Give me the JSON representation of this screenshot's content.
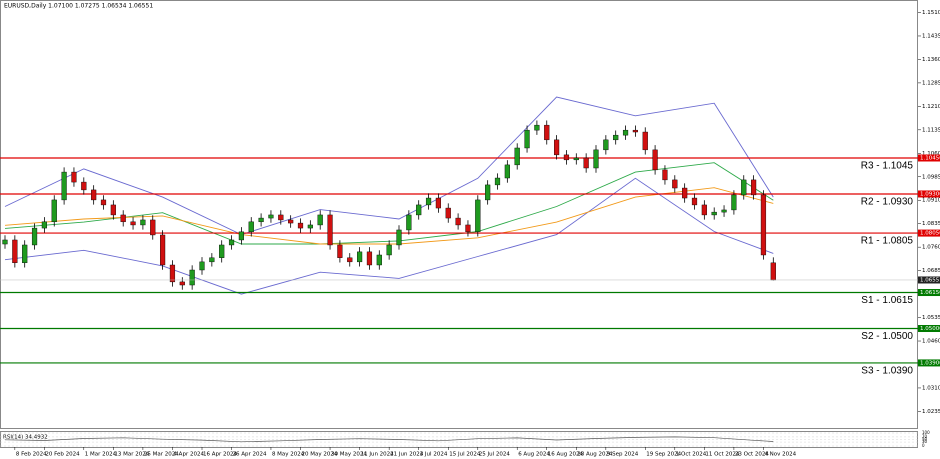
{
  "chart_data": {
    "type": "candlestick",
    "title": "EURUSD,Daily 1.07100 1.07275 1.06534 1.06551",
    "categories": [
      null,
      "8 Feb 2024",
      null,
      null,
      "20 Feb 2024",
      null,
      null,
      null,
      "1 Mar 2024",
      null,
      null,
      "13 Mar 2024",
      null,
      null,
      "25 Mar 2024",
      null,
      null,
      "4 Apr 2024",
      null,
      null,
      "16 Apr 2024",
      null,
      null,
      "26 Apr 2024",
      null,
      null,
      null,
      "8 May 2024",
      null,
      null,
      "20 May 2024",
      null,
      null,
      "30 May 2024",
      null,
      null,
      "11 Jun 2024",
      null,
      null,
      "21 Jun 2024",
      null,
      null,
      "3 Jul 2024",
      null,
      null,
      "15 Jul 2024",
      null,
      null,
      "25 Jul 2024",
      null,
      null,
      null,
      "6 Aug 2024",
      null,
      null,
      "16 Aug 2024",
      null,
      null,
      "28 Aug 2024",
      null,
      null,
      "9 Sep 2024",
      null,
      null,
      null,
      "19 Sep 2024",
      null,
      null,
      "1 Oct 2024",
      null,
      null,
      "11 Oct 2024",
      null,
      null,
      "23 Oct 2024",
      null,
      null,
      "4 Nov 2024",
      null
    ],
    "open": [
      1.077,
      1.0783,
      1.071,
      1.0767,
      1.0821,
      1.0841,
      1.0911,
      1.1,
      1.0968,
      1.0943,
      1.0911,
      1.0895,
      1.0863,
      1.0841,
      1.0831,
      1.0847,
      1.0799,
      1.0703,
      1.0649,
      1.0639,
      1.0687,
      1.0713,
      1.0726,
      1.0767,
      1.0783,
      1.0809,
      1.0841,
      1.0853,
      1.0863,
      1.0847,
      1.0837,
      1.0821,
      1.0831,
      1.0863,
      1.0767,
      1.0726,
      1.0713,
      1.0745,
      1.0703,
      1.0735,
      1.0767,
      1.0815,
      1.0863,
      1.0895,
      1.0917,
      1.0885,
      1.0853,
      1.0831,
      1.0809,
      1.0911,
      1.0959,
      1.0981,
      1.1023,
      1.1077,
      1.1134,
      1.115,
      1.1103,
      1.1055,
      1.1039,
      1.1045,
      1.1013,
      1.1071,
      1.1103,
      1.1118,
      1.1134,
      1.1128,
      1.1071,
      1.1007,
      1.0975,
      1.0949,
      1.0917,
      1.0895,
      1.0863,
      1.0872,
      1.0879,
      1.0927,
      1.0975,
      1.0927,
      1.071
    ],
    "high": [
      1.0798,
      1.0798,
      1.0782,
      1.0836,
      1.0856,
      1.0926,
      1.1015,
      1.1015,
      1.0983,
      1.0958,
      1.0926,
      1.091,
      1.0878,
      1.0856,
      1.0862,
      1.0862,
      1.0814,
      1.0718,
      1.0664,
      1.0702,
      1.0728,
      1.0741,
      1.0782,
      1.0798,
      1.0824,
      1.0856,
      1.0868,
      1.0878,
      1.0878,
      1.0862,
      1.0852,
      1.0846,
      1.0878,
      1.0878,
      1.0782,
      1.0741,
      1.076,
      1.076,
      1.075,
      1.0782,
      1.083,
      1.0878,
      1.091,
      1.0932,
      1.0932,
      1.09,
      1.0868,
      1.0846,
      1.0926,
      1.0974,
      1.0996,
      1.1038,
      1.1092,
      1.1149,
      1.1165,
      1.1165,
      1.1118,
      1.107,
      1.106,
      1.106,
      1.1086,
      1.1118,
      1.1133,
      1.1149,
      1.1149,
      1.1143,
      1.1086,
      1.1022,
      1.099,
      1.0964,
      1.0932,
      1.091,
      1.0887,
      1.0894,
      1.0942,
      1.099,
      1.099,
      1.0942,
      1.07275
    ],
    "low": [
      1.0755,
      1.0695,
      1.0695,
      1.0752,
      1.0806,
      1.0826,
      1.0896,
      1.0953,
      1.0928,
      1.0896,
      1.088,
      1.0848,
      1.0826,
      1.0816,
      1.0816,
      1.0784,
      1.0688,
      1.0634,
      1.0624,
      1.0624,
      1.0672,
      1.0698,
      1.0711,
      1.0752,
      1.0768,
      1.0794,
      1.0826,
      1.0838,
      1.0832,
      1.0822,
      1.0806,
      1.0806,
      1.0816,
      1.0752,
      1.0711,
      1.0698,
      1.0698,
      1.0688,
      1.0688,
      1.072,
      1.0752,
      1.08,
      1.0848,
      1.088,
      1.087,
      1.0838,
      1.0816,
      1.0794,
      1.0794,
      1.0896,
      1.0944,
      1.0966,
      1.1008,
      1.1062,
      1.1119,
      1.1088,
      1.104,
      1.1024,
      1.1024,
      1.0998,
      1.0998,
      1.1056,
      1.1088,
      1.1103,
      1.1113,
      1.1056,
      1.0992,
      1.096,
      1.0934,
      1.0902,
      1.088,
      1.0848,
      1.0848,
      1.0857,
      1.0864,
      1.0912,
      1.0912,
      1.072,
      1.06534
    ],
    "close": [
      1.0783,
      1.071,
      1.0767,
      1.0821,
      1.0841,
      1.0911,
      1.1,
      1.0968,
      1.0943,
      1.0911,
      1.0895,
      1.0863,
      1.0841,
      1.0831,
      1.0847,
      1.0799,
      1.0703,
      1.0649,
      1.0639,
      1.0687,
      1.0713,
      1.0726,
      1.0767,
      1.0783,
      1.0809,
      1.0841,
      1.0853,
      1.0863,
      1.0847,
      1.0837,
      1.0821,
      1.0831,
      1.0863,
      1.0767,
      1.0726,
      1.0713,
      1.0745,
      1.0703,
      1.0735,
      1.0767,
      1.0815,
      1.0863,
      1.0895,
      1.0917,
      1.0885,
      1.0853,
      1.0831,
      1.0809,
      1.0911,
      1.0959,
      1.0981,
      1.1023,
      1.1077,
      1.1134,
      1.115,
      1.1103,
      1.1055,
      1.1039,
      1.1045,
      1.1013,
      1.1071,
      1.1103,
      1.1118,
      1.1134,
      1.1128,
      1.1071,
      1.1007,
      1.0975,
      1.0949,
      1.0917,
      1.0895,
      1.0863,
      1.0872,
      1.0879,
      1.0927,
      1.0975,
      1.0927,
      1.0735,
      1.06551
    ],
    "up_color": "#1f9a1f",
    "down_color": "#d01010",
    "wick_color": "#000000",
    "last_label": "1.06551",
    "ylim": [
      1.0182,
      1.1534
    ],
    "yticks": [
      {
        "value": 1.151,
        "label": "1.15100"
      },
      {
        "value": 1.1435,
        "label": "1.14350"
      },
      {
        "value": 1.136,
        "label": "1.13600"
      },
      {
        "value": 1.1285,
        "label": "1.12850"
      },
      {
        "value": 1.121,
        "label": "1.12100"
      },
      {
        "value": 1.1135,
        "label": "1.11350"
      },
      {
        "value": 1.106,
        "label": "1.10600"
      },
      {
        "value": 1.0985,
        "label": "1.09850"
      },
      {
        "value": 1.091,
        "label": "1.09100"
      },
      {
        "value": 1.0835,
        "label": "1.08350"
      },
      {
        "value": 1.076,
        "label": "1.07600"
      },
      {
        "value": 1.0685,
        "label": "1.06850"
      },
      {
        "value": 1.061,
        "label": "1.06100"
      },
      {
        "value": 1.0535,
        "label": "1.05350"
      },
      {
        "value": 1.046,
        "label": "1.04600"
      },
      {
        "value": 1.0385,
        "label": "1.03850"
      },
      {
        "value": 1.031,
        "label": "1.03100"
      },
      {
        "value": 1.0235,
        "label": "1.02350"
      }
    ],
    "levels": [
      {
        "name": "R3 - 1.1045",
        "value": 1.1045,
        "color": "#e00000",
        "axis_label": "1.10450"
      },
      {
        "name": "R2 - 1.0930",
        "value": 1.093,
        "color": "#e00000",
        "axis_label": "1.09300"
      },
      {
        "name": "R1 - 1.0805",
        "value": 1.0805,
        "color": "#e00000",
        "axis_label": "1.08050"
      },
      {
        "name": "S1 - 1.0615",
        "value": 1.0615,
        "color": "#007a00",
        "axis_label": "1.06150"
      },
      {
        "name": "S2 - 1.0500",
        "value": 1.05,
        "color": "#007a00",
        "axis_label": "1.05000"
      },
      {
        "name": "S3 - 1.0390",
        "value": 1.039,
        "color": "#007a00",
        "axis_label": "1.03900"
      }
    ],
    "overlays": [
      {
        "color": "#6a6ad0",
        "x": [
          0,
          8,
          16,
          24,
          32,
          40,
          48,
          56,
          64,
          72,
          78
        ],
        "values": [
          1.089,
          1.101,
          1.092,
          1.08,
          1.088,
          1.085,
          1.098,
          1.124,
          1.118,
          1.122,
          1.092
        ]
      },
      {
        "color": "#6a6ad0",
        "x": [
          0,
          8,
          16,
          24,
          32,
          40,
          48,
          56,
          64,
          72,
          78
        ],
        "values": [
          1.072,
          1.075,
          1.07,
          1.061,
          1.068,
          1.066,
          1.073,
          1.08,
          1.098,
          1.081,
          1.074
        ]
      },
      {
        "color": "#2eaa4a",
        "x": [
          0,
          8,
          16,
          24,
          32,
          40,
          48,
          56,
          64,
          72,
          78
        ],
        "values": [
          1.082,
          1.084,
          1.087,
          1.077,
          1.077,
          1.078,
          1.081,
          1.089,
          1.1,
          1.103,
          1.091
        ]
      },
      {
        "color": "#f29a1a",
        "x": [
          0,
          8,
          16,
          24,
          32,
          40,
          48,
          56,
          64,
          72,
          78
        ],
        "values": [
          1.083,
          1.085,
          1.086,
          1.08,
          1.077,
          1.077,
          1.079,
          1.084,
          1.092,
          1.095,
          1.09
        ]
      }
    ],
    "rsi": {
      "title": "RSI(14) 34.4932",
      "color": "#555555",
      "x": [
        0,
        4,
        8,
        12,
        16,
        20,
        24,
        28,
        32,
        36,
        40,
        44,
        48,
        52,
        56,
        60,
        64,
        68,
        72,
        76,
        78
      ],
      "values": [
        48,
        42,
        58,
        63,
        52,
        45,
        32,
        40,
        50,
        56,
        50,
        40,
        56,
        62,
        46,
        58,
        66,
        70,
        64,
        44,
        34.4932
      ],
      "ylim": [
        0,
        100
      ],
      "yticks": [
        100,
        70,
        50,
        30,
        0
      ]
    }
  }
}
